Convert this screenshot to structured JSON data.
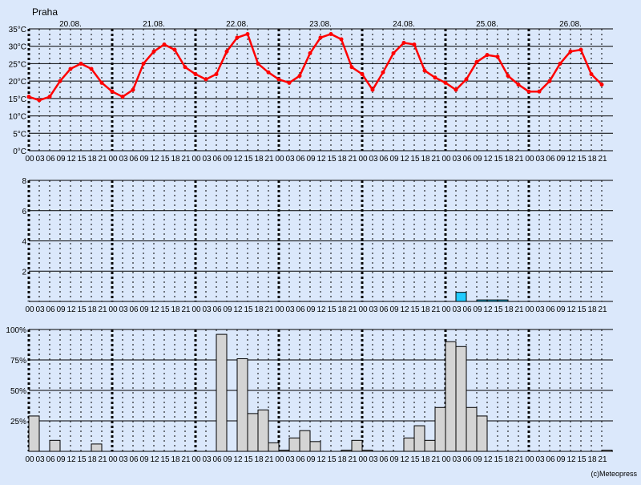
{
  "location": "Praha",
  "copyright": "(c)Meteopress",
  "day_labels": [
    "20.08.",
    "21.08.",
    "22.08.",
    "23.08.",
    "24.08.",
    "25.08.",
    "26.08."
  ],
  "hour_labels": [
    "00",
    "03",
    "06",
    "09",
    "12",
    "15",
    "18",
    "21"
  ],
  "chart_data": [
    {
      "type": "line",
      "ylim": [
        0,
        35
      ],
      "y_ticks": [
        "0°C",
        "5°C",
        "10°C",
        "15°C",
        "20°C",
        "25°C",
        "30°C",
        "35°C"
      ],
      "series": [
        {
          "color": "#ff0000",
          "values": [
            15.5,
            14.5,
            15.5,
            20,
            23.5,
            25,
            23.5,
            19.5,
            17,
            15.5,
            17.5,
            25,
            28.5,
            30.5,
            29,
            24,
            22,
            20.5,
            22,
            28.5,
            32.5,
            33.5,
            25,
            22.5,
            20.5,
            19.5,
            21.5,
            28,
            32.5,
            33.5,
            32,
            24,
            22,
            17.5,
            22.5,
            28,
            31,
            30.5,
            23,
            21,
            19.5,
            17.5,
            20.5,
            25.5,
            27.5,
            27,
            21.5,
            19,
            17,
            17,
            20,
            25,
            28.5,
            29,
            22,
            19
          ]
        }
      ]
    },
    {
      "type": "bar",
      "ylim": [
        0,
        8
      ],
      "y_ticks": [
        "2",
        "4",
        "6",
        "8"
      ],
      "color": "#22ccff",
      "values": [
        0,
        0,
        0,
        0,
        0,
        0,
        0,
        0,
        0,
        0,
        0,
        0,
        0,
        0,
        0,
        0,
        0,
        0,
        0,
        0,
        0,
        0,
        0,
        0,
        0,
        0,
        0,
        0,
        0,
        0,
        0,
        0,
        0,
        0,
        0,
        0,
        0,
        0,
        0,
        0,
        0,
        0.6,
        0,
        0.1,
        0.1,
        0.1,
        0,
        0,
        0,
        0,
        0,
        0,
        0,
        0,
        0,
        0
      ]
    },
    {
      "type": "bar",
      "ylim": [
        0,
        100
      ],
      "y_ticks": [
        "25%",
        "50%",
        "75%",
        "100%"
      ],
      "color": "#d4d4d4",
      "values": [
        29,
        0,
        9,
        0,
        0,
        0,
        6,
        0,
        0,
        0,
        0,
        0,
        0,
        0,
        0,
        0,
        0,
        0,
        96,
        0,
        76,
        31,
        34,
        7,
        1,
        11,
        17,
        8,
        0,
        0,
        1,
        9,
        1,
        0,
        0,
        0,
        11,
        21,
        9,
        36,
        90,
        86,
        36,
        29,
        0,
        0,
        0,
        0,
        0,
        0,
        0,
        0,
        0,
        0,
        0,
        1
      ]
    }
  ]
}
